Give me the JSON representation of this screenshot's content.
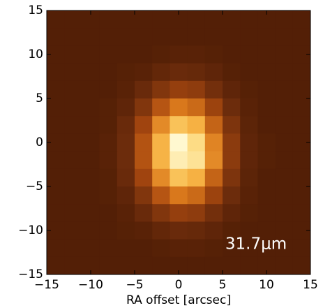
{
  "chart_data": {
    "type": "heatmap",
    "xlabel": "RA offset [arcsec]",
    "annotation": "31.7μm",
    "xlim": [
      -15,
      15
    ],
    "ylim": [
      -15,
      15
    ],
    "xticks": [
      {
        "value": -15,
        "label": "−15"
      },
      {
        "value": -10,
        "label": "−10"
      },
      {
        "value": -5,
        "label": "−5"
      },
      0,
      5,
      10,
      15
    ],
    "yticks": [
      {
        "value": -15,
        "label": "−15"
      },
      {
        "value": -10,
        "label": "−10"
      },
      {
        "value": -5,
        "label": "−5"
      },
      0,
      5,
      10,
      15
    ],
    "clim": [
      0,
      100
    ],
    "colormap": [
      "#3a1200",
      "#6e2d0c",
      "#a8480f",
      "#d9781c",
      "#f5ab3c",
      "#fcd470",
      "#fff8d0"
    ],
    "values": [
      [
        8,
        8,
        8,
        8,
        8,
        8,
        8,
        8,
        8,
        8,
        8,
        8,
        8,
        8,
        8
      ],
      [
        8,
        8,
        8,
        8,
        8,
        8,
        8,
        8,
        8,
        8,
        8,
        8,
        8,
        8,
        8
      ],
      [
        8,
        8,
        8,
        8,
        8,
        8,
        9,
        10,
        10,
        9,
        8,
        8,
        8,
        8,
        8
      ],
      [
        8,
        8,
        8,
        8,
        9,
        10,
        13,
        15,
        14,
        12,
        9,
        8,
        8,
        8,
        8
      ],
      [
        8,
        8,
        8,
        8,
        10,
        15,
        22,
        28,
        26,
        18,
        12,
        9,
        8,
        8,
        8
      ],
      [
        8,
        8,
        8,
        9,
        12,
        22,
        38,
        50,
        45,
        30,
        16,
        10,
        8,
        8,
        8
      ],
      [
        8,
        8,
        8,
        9,
        15,
        31,
        56,
        76,
        69,
        43,
        21,
        11,
        8,
        8,
        8
      ],
      [
        8,
        8,
        8,
        10,
        16,
        37,
        70,
        100,
        87,
        54,
        25,
        12,
        9,
        8,
        8
      ],
      [
        8,
        8,
        8,
        10,
        16,
        37,
        70,
        95,
        90,
        56,
        25,
        12,
        9,
        8,
        8
      ],
      [
        8,
        8,
        8,
        9,
        15,
        31,
        56,
        76,
        69,
        43,
        21,
        11,
        8,
        8,
        8
      ],
      [
        8,
        8,
        8,
        9,
        12,
        22,
        38,
        50,
        45,
        30,
        16,
        10,
        8,
        8,
        8
      ],
      [
        8,
        8,
        8,
        8,
        10,
        15,
        22,
        28,
        26,
        18,
        12,
        9,
        8,
        8,
        8
      ],
      [
        8,
        8,
        8,
        8,
        9,
        10,
        13,
        15,
        14,
        12,
        9,
        8,
        8,
        8,
        8
      ],
      [
        8,
        8,
        8,
        8,
        8,
        8,
        9,
        10,
        10,
        9,
        8,
        8,
        8,
        8,
        8
      ],
      [
        8,
        8,
        8,
        8,
        8,
        8,
        8,
        8,
        8,
        8,
        8,
        8,
        8,
        8,
        8
      ]
    ]
  }
}
